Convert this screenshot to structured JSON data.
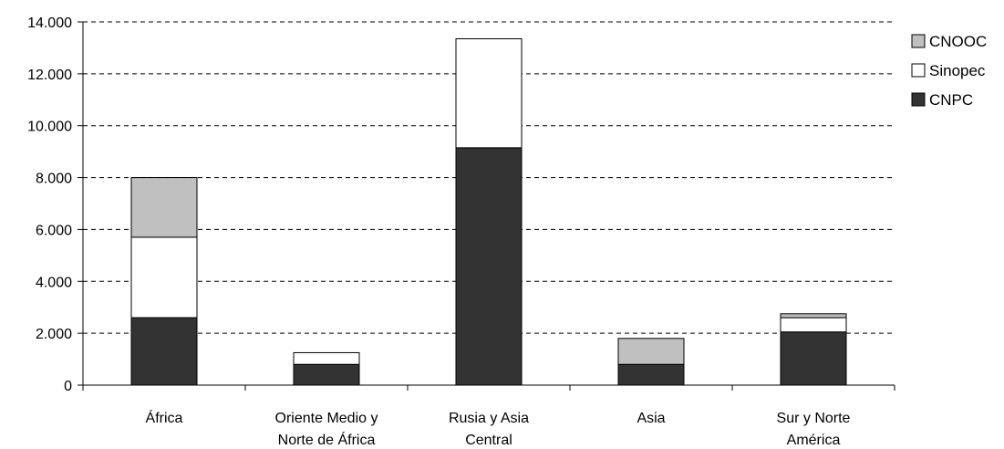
{
  "chart_data": {
    "type": "bar",
    "stacked": true,
    "categories": [
      [
        "África"
      ],
      [
        "Oriente Medio y",
        "Norte de África"
      ],
      [
        "Rusia y Asia",
        "Central"
      ],
      [
        "Asia"
      ],
      [
        "Sur y Norte",
        "América"
      ]
    ],
    "series": [
      {
        "name": "CNPC",
        "values": [
          2600,
          800,
          9150,
          800,
          2050
        ],
        "color": "#333333"
      },
      {
        "name": "Sinopec",
        "values": [
          3100,
          450,
          4200,
          0,
          550
        ],
        "color": "#ffffff"
      },
      {
        "name": "CNOOC",
        "values": [
          2300,
          0,
          0,
          1000,
          150
        ],
        "color": "#c0c0c0"
      }
    ],
    "ylim": [
      0,
      14000
    ],
    "yticks": [
      {
        "value": 0,
        "label": "0"
      },
      {
        "value": 2000,
        "label": "2.000"
      },
      {
        "value": 4000,
        "label": "4.000"
      },
      {
        "value": 6000,
        "label": "6.000"
      },
      {
        "value": 8000,
        "label": "8.000"
      },
      {
        "value": 10000,
        "label": "10.000"
      },
      {
        "value": 12000,
        "label": "12.000"
      },
      {
        "value": 14000,
        "label": "14.000"
      }
    ],
    "grid": "horizontal-dashed",
    "legend": {
      "position": "top-right",
      "entries": [
        "CNOOC",
        "Sinopec",
        "CNPC"
      ]
    },
    "title": "",
    "xlabel": "",
    "ylabel": ""
  }
}
